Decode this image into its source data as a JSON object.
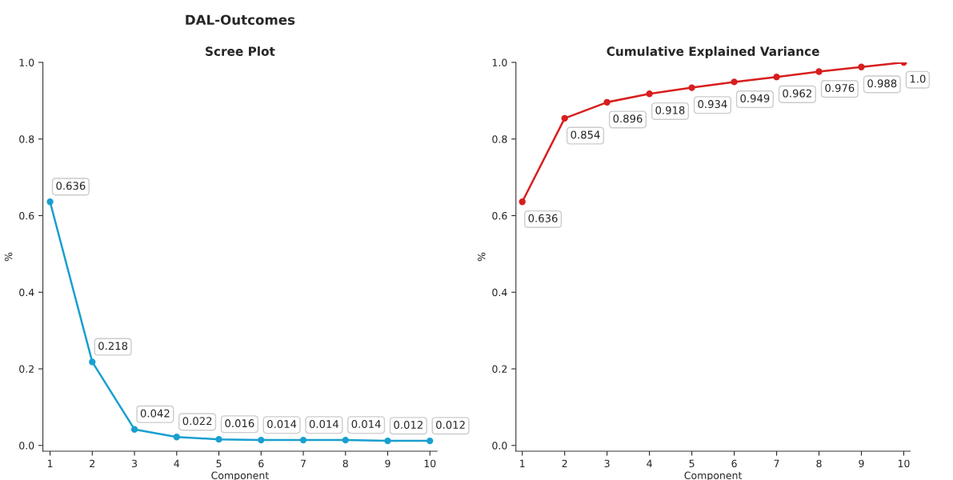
{
  "chart_data": [
    {
      "type": "line",
      "title": "DAL-Outcomes",
      "subtitle": "Scree Plot",
      "xlabel": "Component",
      "ylabel": "%",
      "x": [
        1,
        2,
        3,
        4,
        5,
        6,
        7,
        8,
        9,
        10
      ],
      "series": [
        {
          "color": "#1a9fd0",
          "values": [
            0.636,
            0.218,
            0.042,
            0.022,
            0.016,
            0.014,
            0.014,
            0.014,
            0.012,
            0.012
          ]
        }
      ],
      "xlim": [
        0.83,
        10.17
      ],
      "xticks": [
        1,
        2,
        3,
        4,
        5,
        6,
        7,
        8,
        9,
        10
      ],
      "ylim": [
        -0.015,
        1.0
      ],
      "yticks": [
        {
          "value": 0,
          "label": "0.0"
        },
        {
          "value": 0.2,
          "label": "0.2"
        },
        {
          "value": 0.4,
          "label": "0.4"
        },
        {
          "value": 0.6,
          "label": "0.6"
        },
        {
          "value": 0.8,
          "label": "0.8"
        },
        {
          "value": 1.0,
          "label": "1.0"
        }
      ],
      "data_labels": true,
      "marker": "circle",
      "line_style": "solid",
      "grid": false,
      "legend": false
    },
    {
      "type": "line",
      "title": "Cumulative Explained Variance",
      "xlabel": "Component",
      "ylabel": "%",
      "x": [
        1,
        2,
        3,
        4,
        5,
        6,
        7,
        8,
        9,
        10
      ],
      "series": [
        {
          "color": "#d81e1e",
          "values": [
            0.636,
            0.854,
            0.896,
            0.918,
            0.934,
            0.949,
            0.962,
            0.976,
            0.988,
            1.0
          ],
          "value_labels": [
            "0.636",
            "0.854",
            "0.896",
            "0.918",
            "0.934",
            "0.949",
            "0.962",
            "0.976",
            "0.988",
            "1.0"
          ]
        }
      ],
      "xlim": [
        0.85,
        10.15
      ],
      "xticks": [
        1,
        2,
        3,
        4,
        5,
        6,
        7,
        8,
        9,
        10
      ],
      "ylim": [
        -0.015,
        1.0
      ],
      "yticks": [
        {
          "value": 0,
          "label": "0.0"
        },
        {
          "value": 0.2,
          "label": "0.2"
        },
        {
          "value": 0.4,
          "label": "0.4"
        },
        {
          "value": 0.6,
          "label": "0.6"
        },
        {
          "value": 0.8,
          "label": "0.8"
        },
        {
          "value": 1.0,
          "label": "1.0"
        }
      ],
      "marker": "circle",
      "line_style": "solid",
      "grid": false,
      "legend": false
    }
  ]
}
